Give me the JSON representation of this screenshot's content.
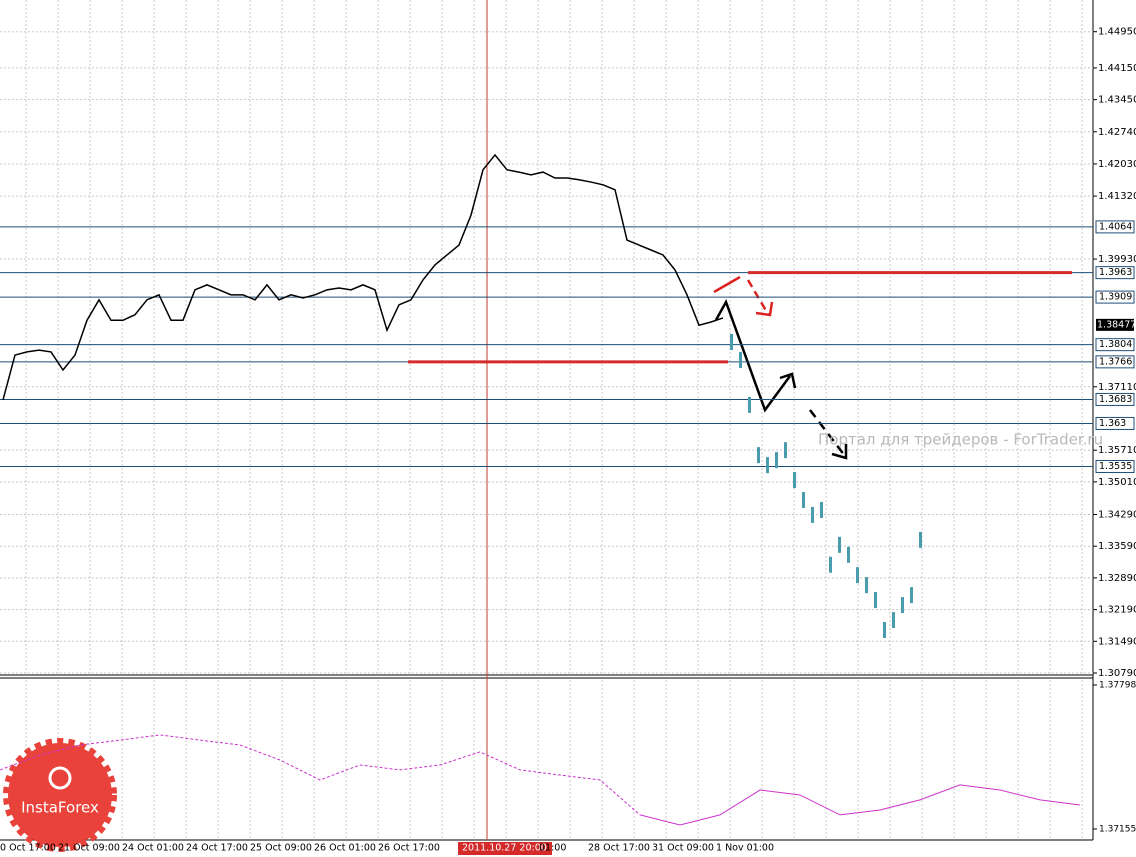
{
  "chart_data": [
    {
      "type": "line",
      "ylim": [
        1.3079,
        1.4565
      ],
      "yticks": [
        {
          "value": 1.4495,
          "label": "1.44950"
        },
        {
          "value": 1.4415,
          "label": "1.44150"
        },
        {
          "value": 1.4345,
          "label": "1.43450"
        },
        {
          "value": 1.4274,
          "label": "1.42740"
        },
        {
          "value": 1.4203,
          "label": "1.42030"
        },
        {
          "value": 1.4132,
          "label": "1.41320"
        },
        {
          "value": 1.3993,
          "label": "1.39930"
        },
        {
          "value": 1.3711,
          "label": "1.37110"
        },
        {
          "value": 1.3571,
          "label": "1.35710"
        },
        {
          "value": 1.3501,
          "label": "1.35010"
        },
        {
          "value": 1.3429,
          "label": "1.34290"
        },
        {
          "value": 1.3359,
          "label": "1.33590"
        },
        {
          "value": 1.3289,
          "label": "1.32890"
        },
        {
          "value": 1.3219,
          "label": "1.32190"
        },
        {
          "value": 1.3149,
          "label": "1.31490"
        },
        {
          "value": 1.3079,
          "label": "1.30790"
        }
      ],
      "x_labels": [
        "0 Oct 17:00",
        "21 Oct 09:00",
        "24 Oct 01:00",
        "24 Oct 17:00",
        "25 Oct 09:00",
        "26 Oct 01:00",
        "26 Oct 17:00",
        "2011.10.27 20:00",
        "01:00",
        "28 Oct 17:00",
        "31 Oct 09:00",
        "1 Nov 01:00"
      ],
      "series": [
        {
          "color": "#000000",
          "values": [
            1.3682,
            1.3781,
            1.3788,
            1.3792,
            1.3788,
            1.3748,
            1.3781,
            1.3858,
            1.3903,
            1.3858,
            1.3858,
            1.387,
            1.3903,
            1.3914,
            1.3858,
            1.3858,
            1.3925,
            1.3936,
            1.3925,
            1.3914,
            1.3914,
            1.3903,
            1.3936,
            1.3903,
            1.3914,
            1.3907,
            1.3914,
            1.3925,
            1.3929,
            1.3925,
            1.3936,
            1.3925,
            1.3836,
            1.3892,
            1.3903,
            1.3947,
            1.398,
            1.4002,
            1.4024,
            1.409,
            1.419,
            1.4223,
            1.419,
            1.4185,
            1.4179,
            1.4185,
            1.4172,
            1.4172,
            1.4168,
            1.4163,
            1.4157,
            1.4146,
            1.4035,
            1.4024,
            1.4013,
            1.4002,
            1.3969,
            1.3914,
            1.3847,
            1.3854,
            1.3863
          ]
        },
        {
          "color": "#4a9bab",
          "values": [
            1.381,
            1.377,
            1.3671,
            1.356,
            1.3538,
            1.3549,
            1.3571,
            1.3505,
            1.3461,
            1.3428,
            1.3439,
            1.3318,
            1.3362,
            1.334,
            1.3295,
            1.3273,
            1.324,
            1.3174,
            1.3196,
            1.3229,
            1.3251,
            1.3373
          ]
        }
      ],
      "levels": [
        1.4064,
        1.3963,
        1.3909,
        1.3804,
        1.3766,
        1.3683,
        1.363,
        1.3535
      ],
      "current_price": 1.38477,
      "annotation_lines": [
        1.3963,
        1.3766
      ],
      "watermark": "Портал для трейдеров - ForTrader.ru",
      "logo": "InstaForex"
    },
    {
      "type": "line",
      "ylim": [
        1.37155,
        1.37798
      ],
      "yticks": [
        1.37798,
        1.37155
      ],
      "color": "#cc33cc",
      "values": [
        1.37419,
        1.37485,
        1.3753,
        1.37552,
        1.37575,
        1.37552,
        1.3753,
        1.37463,
        1.37374,
        1.37441,
        1.37419,
        1.37441,
        1.37499,
        1.37419,
        1.37396,
        1.37374,
        1.37218,
        1.37173,
        1.37218,
        1.37329,
        1.37307,
        1.37218,
        1.3724,
        1.37285,
        1.37352,
        1.37329,
        1.37285,
        1.37262
      ]
    }
  ]
}
